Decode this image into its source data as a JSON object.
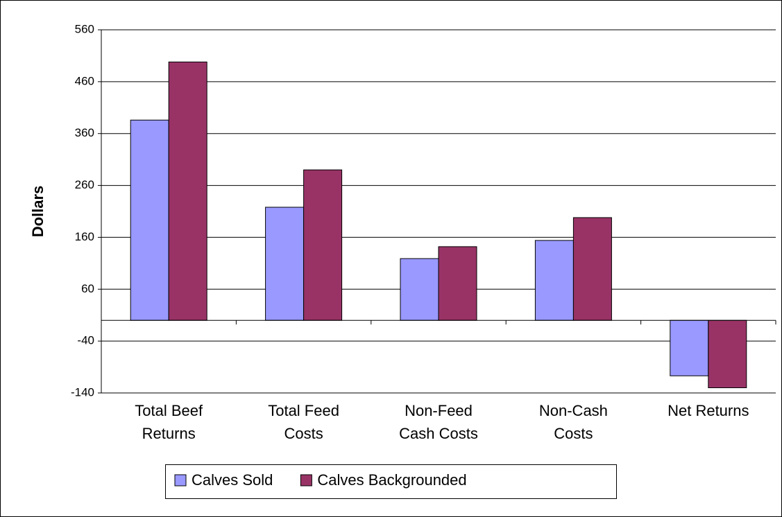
{
  "chart_data": {
    "type": "bar",
    "y_label": "Dollars",
    "categories": [
      "Total Beef\nReturns",
      "Total Feed\nCosts",
      "Non-Feed\nCash Costs",
      "Non-Cash\nCosts",
      "Net Returns"
    ],
    "series": [
      {
        "name": "Calves Sold",
        "color": "#9999ff",
        "values": [
          386,
          218,
          119,
          154,
          -107
        ]
      },
      {
        "name": "Calves Backgrounded",
        "color": "#993366",
        "values": [
          498,
          290,
          142,
          198,
          -130
        ]
      }
    ],
    "ylim": [
      -140,
      560
    ],
    "yticks": [
      -140,
      -40,
      60,
      160,
      260,
      360,
      460,
      560
    ],
    "grid": true,
    "legend": "bottom"
  }
}
